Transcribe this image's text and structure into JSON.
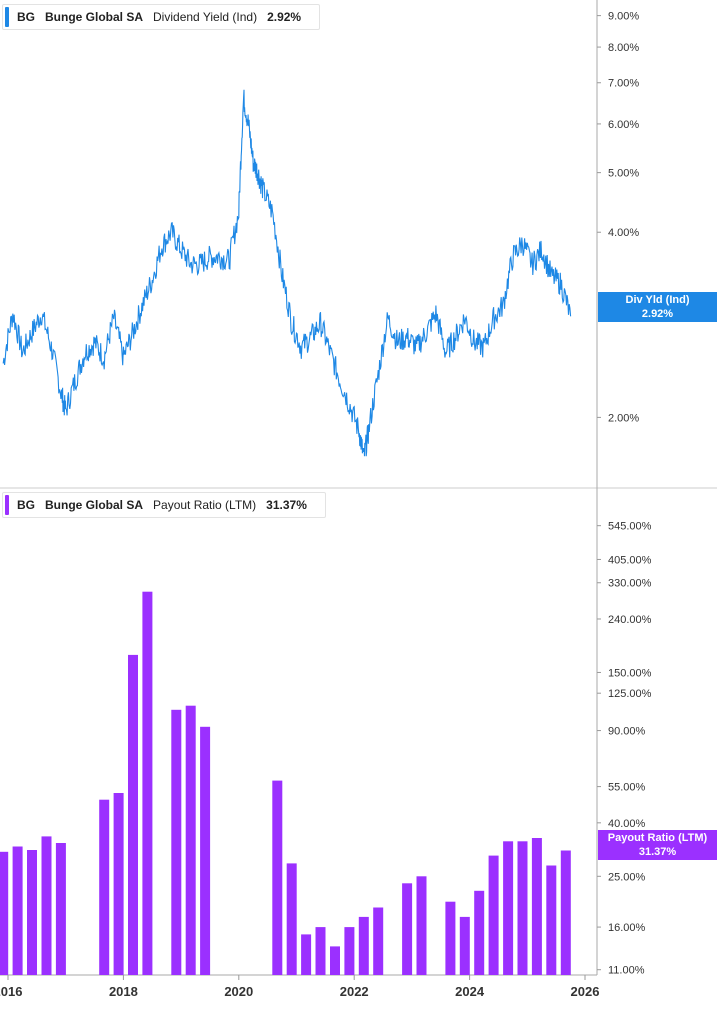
{
  "top_legend": {
    "ticker": "BG",
    "company": "Bunge Global SA",
    "metric": "Dividend Yield (Ind)",
    "value": "2.92%"
  },
  "bottom_legend": {
    "ticker": "BG",
    "company": "Bunge Global SA",
    "metric": "Payout Ratio (LTM)",
    "value": "31.37%"
  },
  "top_tag": {
    "label": "Div Yld (Ind)",
    "value": "2.92%"
  },
  "bottom_tag": {
    "label": "Payout Ratio (LTM)",
    "value": "31.37%"
  },
  "colors": {
    "yield_line": "#1e88e5",
    "payout_bar": "#9b30ff",
    "axis": "#999999",
    "text": "#333333"
  },
  "chart_data": [
    {
      "type": "line",
      "series": [
        {
          "name": "Dividend Yield (Ind)",
          "points": [
            [
              "2015-12",
              2.45
            ],
            [
              "2016-02",
              2.95
            ],
            [
              "2016-04",
              2.55
            ],
            [
              "2016-06",
              2.75
            ],
            [
              "2016-08",
              2.95
            ],
            [
              "2016-10",
              2.6
            ],
            [
              "2016-12",
              2.2
            ],
            [
              "2017-01",
              2.05
            ],
            [
              "2017-03",
              2.3
            ],
            [
              "2017-05",
              2.55
            ],
            [
              "2017-07",
              2.65
            ],
            [
              "2017-09",
              2.5
            ],
            [
              "2017-11",
              2.9
            ],
            [
              "2018-01",
              2.5
            ],
            [
              "2018-03",
              2.75
            ],
            [
              "2018-05",
              3.05
            ],
            [
              "2018-07",
              3.35
            ],
            [
              "2018-09",
              3.8
            ],
            [
              "2018-11",
              4.0
            ],
            [
              "2019-01",
              3.75
            ],
            [
              "2019-03",
              3.55
            ],
            [
              "2019-05",
              3.55
            ],
            [
              "2019-07",
              3.65
            ],
            [
              "2019-09",
              3.65
            ],
            [
              "2019-11",
              3.6
            ],
            [
              "2020-01",
              4.3
            ],
            [
              "2020-02",
              6.6
            ],
            [
              "2020-03",
              6.0
            ],
            [
              "2020-04",
              5.2
            ],
            [
              "2020-05",
              5.0
            ],
            [
              "2020-06",
              4.7
            ],
            [
              "2020-08",
              4.3
            ],
            [
              "2020-10",
              3.4
            ],
            [
              "2020-12",
              2.85
            ],
            [
              "2021-02",
              2.6
            ],
            [
              "2021-04",
              2.7
            ],
            [
              "2021-06",
              2.85
            ],
            [
              "2021-08",
              2.55
            ],
            [
              "2021-10",
              2.3
            ],
            [
              "2021-12",
              2.1
            ],
            [
              "2022-02",
              1.9
            ],
            [
              "2022-03",
              1.72
            ],
            [
              "2022-04",
              1.9
            ],
            [
              "2022-06",
              2.35
            ],
            [
              "2022-08",
              2.9
            ],
            [
              "2022-10",
              2.65
            ],
            [
              "2022-12",
              2.7
            ],
            [
              "2023-02",
              2.6
            ],
            [
              "2023-04",
              2.75
            ],
            [
              "2023-06",
              2.95
            ],
            [
              "2023-08",
              2.55
            ],
            [
              "2023-10",
              2.7
            ],
            [
              "2023-12",
              2.9
            ],
            [
              "2024-02",
              2.65
            ],
            [
              "2024-04",
              2.6
            ],
            [
              "2024-06",
              2.9
            ],
            [
              "2024-08",
              3.05
            ],
            [
              "2024-10",
              3.65
            ],
            [
              "2024-12",
              3.85
            ],
            [
              "2025-02",
              3.55
            ],
            [
              "2025-04",
              3.75
            ],
            [
              "2025-06",
              3.4
            ],
            [
              "2025-08",
              3.3
            ],
            [
              "2025-10",
              2.92
            ]
          ]
        }
      ],
      "y_ticks": [
        "9.00%",
        "8.00%",
        "7.00%",
        "6.00%",
        "5.00%",
        "4.00%",
        "2.00%"
      ],
      "y_scale": "log",
      "ylim": [
        1.6,
        9.4
      ]
    },
    {
      "type": "bar",
      "series": [
        {
          "name": "Payout Ratio (LTM)",
          "points": [
            [
              "2015-12",
              31
            ],
            [
              "2016-03",
              32.5
            ],
            [
              "2016-06",
              31.5
            ],
            [
              "2016-09",
              35.5
            ],
            [
              "2016-12",
              33.5
            ],
            [
              "2017-09",
              49
            ],
            [
              "2017-12",
              52
            ],
            [
              "2018-03",
              175
            ],
            [
              "2018-06",
              305
            ],
            [
              "2018-12",
              108
            ],
            [
              "2019-03",
              112
            ],
            [
              "2019-06",
              93
            ],
            [
              "2020-09",
              58
            ],
            [
              "2020-12",
              28
            ],
            [
              "2021-03",
              15
            ],
            [
              "2021-06",
              16
            ],
            [
              "2021-09",
              13.5
            ],
            [
              "2021-12",
              16
            ],
            [
              "2022-03",
              17.5
            ],
            [
              "2022-06",
              19
            ],
            [
              "2022-12",
              23.5
            ],
            [
              "2023-03",
              25
            ],
            [
              "2023-09",
              20
            ],
            [
              "2023-12",
              17.5
            ],
            [
              "2024-03",
              22
            ],
            [
              "2024-06",
              30
            ],
            [
              "2024-09",
              34
            ],
            [
              "2024-12",
              34
            ],
            [
              "2025-03",
              35
            ],
            [
              "2025-06",
              27.5
            ],
            [
              "2025-09",
              31.37
            ]
          ]
        }
      ],
      "y_ticks": [
        "545.00%",
        "405.00%",
        "330.00%",
        "240.00%",
        "150.00%",
        "125.00%",
        "90.00%",
        "55.00%",
        "40.00%",
        "25.00%",
        "16.00%",
        "11.00%"
      ],
      "y_scale": "log",
      "ylim": [
        10.5,
        620
      ]
    }
  ],
  "x_axis": {
    "ticks": [
      "2016",
      "2018",
      "2020",
      "2022",
      "2024",
      "2026"
    ],
    "range": [
      "2015-06",
      "2026-03"
    ]
  }
}
